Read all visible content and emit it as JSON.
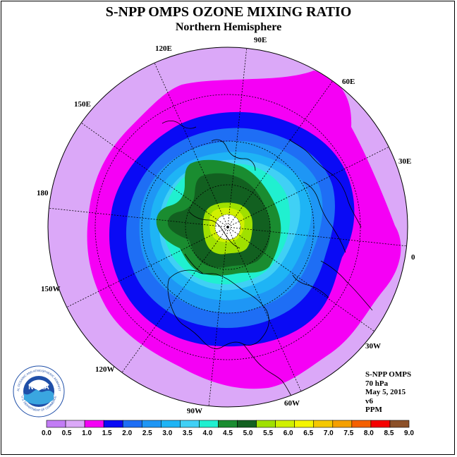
{
  "title": "S-NPP OMPS OZONE MIXING RATIO",
  "subtitle": "Northern Hemisphere",
  "longitude_labels": [
    "90E",
    "60E",
    "30E",
    "0",
    "30W",
    "60W",
    "90W",
    "120W",
    "150W",
    "180",
    "150E",
    "120E"
  ],
  "info": {
    "instrument": "S-NPP OMPS",
    "level": "70 hPa",
    "date": "May 5, 2015",
    "version": "v6",
    "units": "PPM"
  },
  "logo": {
    "text": "NOAA",
    "ring_text": "NATIONAL OCEANIC AND ATMOSPHERIC ADMINISTRATION",
    "bottom_text": "U.S. DEPARTMENT OF COMMERCE"
  },
  "colorbar": {
    "ticks": [
      "0.0",
      "0.5",
      "1.0",
      "1.5",
      "2.0",
      "2.5",
      "3.0",
      "3.5",
      "4.0",
      "4.5",
      "5.0",
      "5.5",
      "6.0",
      "6.5",
      "7.0",
      "7.5",
      "8.0",
      "8.5",
      "9.0"
    ],
    "colors": [
      "#c27cf5",
      "#dba8f8",
      "#f500f5",
      "#0a0af5",
      "#1e6ef5",
      "#1e96f5",
      "#1eb4f5",
      "#40d0f5",
      "#20f0d0",
      "#1a8c30",
      "#126020",
      "#a0e000",
      "#d0f000",
      "#f5f500",
      "#f5c800",
      "#f5a000",
      "#f56000",
      "#f50000",
      "#8c5028"
    ]
  },
  "colors": {
    "background_outer": "#dba8f8",
    "pole_fill": "#ffffff"
  }
}
